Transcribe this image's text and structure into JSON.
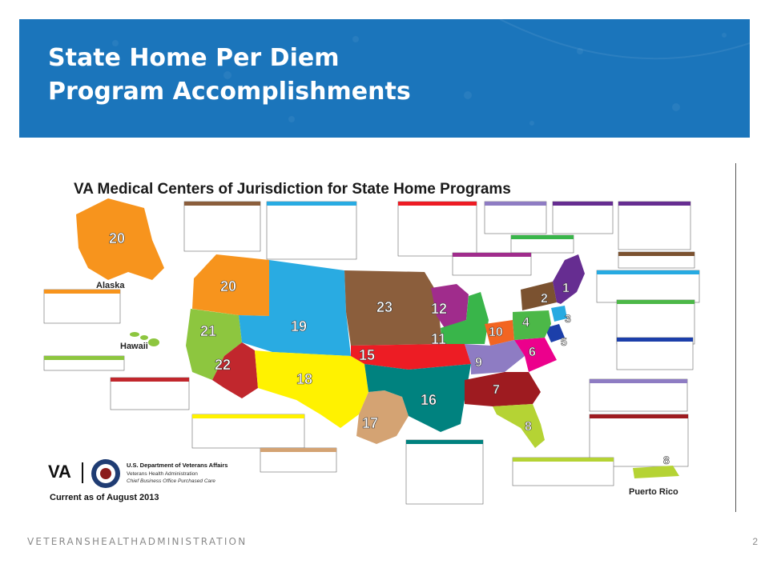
{
  "slide": {
    "title_line1": "State Home Per Diem",
    "title_line2": "Program Accomplishments",
    "footer": "VETERANSHEALTHADMINISTRATION",
    "page_number": "2"
  },
  "map": {
    "heading": "VA Medical Centers of Jurisdiction for State Home Programs",
    "labels": {
      "alaska": "Alaska",
      "hawaii": "Hawaii",
      "puerto_rico": "Puerto Rico"
    },
    "regions": [
      {
        "visn": "20",
        "color": "#f7941d"
      },
      {
        "visn": "20",
        "color": "#f7941d"
      },
      {
        "visn": "21",
        "color": "#8dc63f"
      },
      {
        "visn": "22",
        "color": "#c1272d"
      },
      {
        "visn": "19",
        "color": "#29abe2"
      },
      {
        "visn": "18",
        "color": "#fff200"
      },
      {
        "visn": "17",
        "color": "#d4a373"
      },
      {
        "visn": "23",
        "color": "#8b5e3c"
      },
      {
        "visn": "15",
        "color": "#ed1c24"
      },
      {
        "visn": "16",
        "color": "#00827f"
      },
      {
        "visn": "12",
        "color": "#a02c8c"
      },
      {
        "visn": "11",
        "color": "#39b54a"
      },
      {
        "visn": "10",
        "color": "#f26522"
      },
      {
        "visn": "9",
        "color": "#8e7cc3"
      },
      {
        "visn": "7",
        "color": "#9e1b20"
      },
      {
        "visn": "8",
        "color": "#b5d334"
      },
      {
        "visn": "6",
        "color": "#ec008c"
      },
      {
        "visn": "5",
        "color": "#1c3faa"
      },
      {
        "visn": "4",
        "color": "#4cb848"
      },
      {
        "visn": "3",
        "color": "#27aae1"
      },
      {
        "visn": "2",
        "color": "#7b5230"
      },
      {
        "visn": "1",
        "color": "#662d91"
      },
      {
        "visn": "8",
        "color": "#b5d334"
      }
    ],
    "logo": {
      "mark": "VA",
      "line1": "U.S. Department of Veterans Affairs",
      "line2": "Veterans Health Administration",
      "line3": "Chief Business Office Purchased Care"
    },
    "currency_note": "Current as of August 2013"
  }
}
